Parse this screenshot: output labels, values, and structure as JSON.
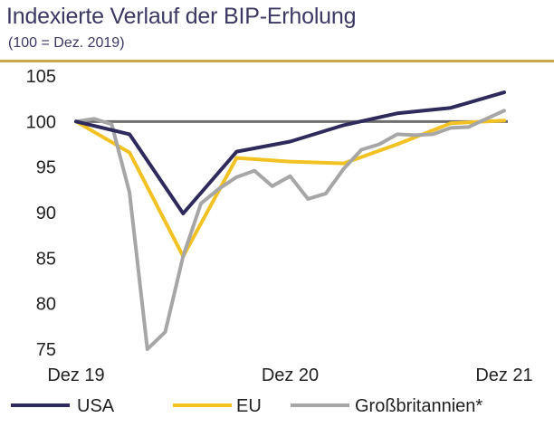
{
  "header": {
    "title": "Indexierte Verlauf der BIP-Erholung",
    "subtitle": "(100 = Dez. 2019)"
  },
  "colors": {
    "accent_rule": "#c9a84a",
    "baseline": "#6e6e6e",
    "USA": "#2e2a5b",
    "EU": "#f2c224",
    "Großbritannien*": "#a6a6a6"
  },
  "chart_data": {
    "type": "line",
    "title": "Indexierte Verlauf der BIP-Erholung",
    "subtitle": "(100 = Dez. 2019)",
    "xlabel": "",
    "ylabel": "",
    "ylim": [
      75,
      105
    ],
    "yticks": [
      75,
      80,
      85,
      90,
      95,
      100,
      105
    ],
    "xlim": [
      0,
      24
    ],
    "xticks": [
      {
        "x": 0,
        "label": "Dez 19"
      },
      {
        "x": 12,
        "label": "Dez 20"
      },
      {
        "x": 24,
        "label": "Dez 21"
      }
    ],
    "reference_line": 100,
    "grid": false,
    "legend_position": "bottom",
    "series": [
      {
        "name": "USA",
        "x": [
          0,
          3,
          6,
          9,
          12,
          15,
          18,
          21,
          24
        ],
        "values": [
          100,
          98.6,
          89.9,
          96.7,
          97.8,
          99.6,
          100.9,
          101.5,
          103.2
        ]
      },
      {
        "name": "EU",
        "x": [
          0,
          3,
          6,
          9,
          12,
          15,
          18,
          21,
          24
        ],
        "values": [
          100,
          96.6,
          85.2,
          96.0,
          95.6,
          95.4,
          97.5,
          99.8,
          100.1
        ]
      },
      {
        "name": "Großbritannien*",
        "x": [
          0,
          1,
          2,
          3,
          4,
          5,
          6,
          7,
          8,
          9,
          10,
          11,
          12,
          13,
          14,
          15,
          16,
          17,
          18,
          19,
          20,
          21,
          22,
          23,
          24
        ],
        "values": [
          100,
          100.3,
          99.7,
          92.2,
          75.0,
          76.9,
          85.2,
          91.0,
          92.6,
          93.9,
          94.6,
          92.9,
          94.0,
          91.5,
          92.1,
          94.8,
          96.9,
          97.5,
          98.6,
          98.5,
          98.6,
          99.3,
          99.4,
          100.3,
          101.2
        ]
      }
    ]
  }
}
